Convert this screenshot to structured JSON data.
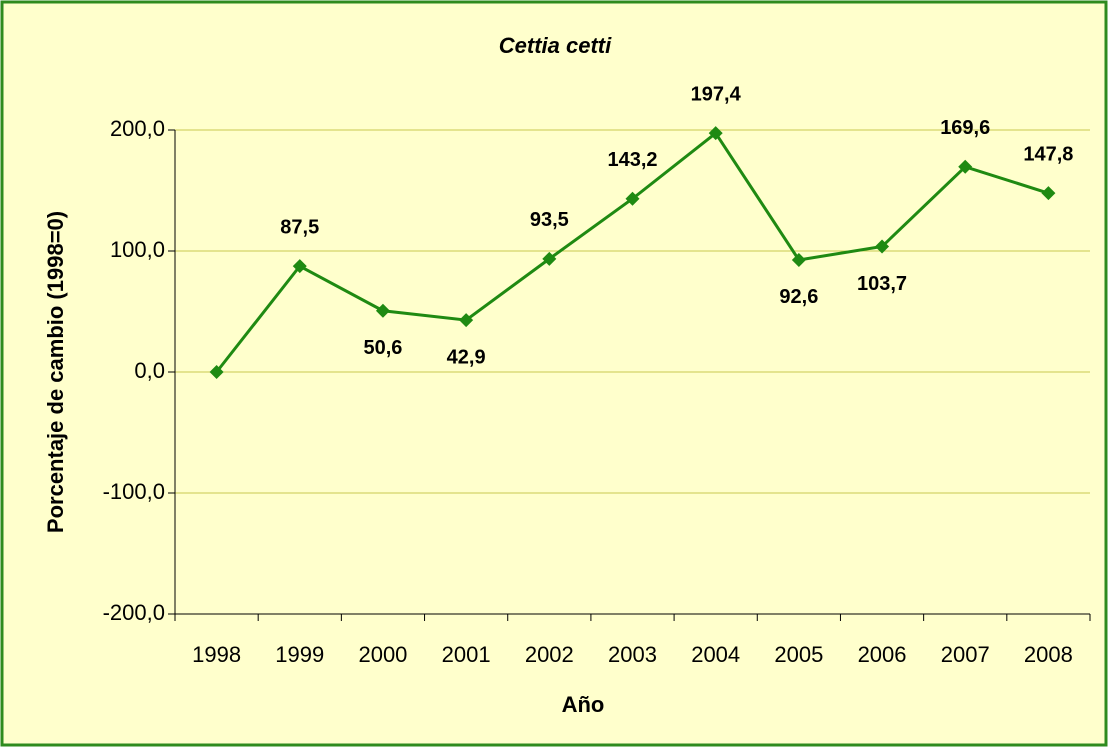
{
  "chart_data": {
    "type": "line",
    "title": "Cettia cetti",
    "x_label": "Año",
    "y_label": "Porcentaje de cambio (1998=0)",
    "categories": [
      "1998",
      "1999",
      "2000",
      "2001",
      "2002",
      "2003",
      "2004",
      "2005",
      "2006",
      "2007",
      "2008"
    ],
    "series": [
      {
        "name": "Cettia cetti",
        "color": "#1f8a12",
        "values": [
          0,
          87.5,
          50.6,
          42.9,
          93.5,
          143.2,
          197.4,
          92.6,
          103.7,
          169.6,
          147.8
        ],
        "value_labels": [
          null,
          "87,5",
          "50,6",
          "42,9",
          "93,5",
          "143,2",
          "197,4",
          "92,6",
          "103,7",
          "169,6",
          "147,8"
        ]
      }
    ],
    "ylim": [
      -200,
      200
    ],
    "yticks": [
      {
        "value": -200,
        "label": "-200,0"
      },
      {
        "value": -100,
        "label": "-100,0"
      },
      {
        "value": 0,
        "label": "0,0"
      },
      {
        "value": 100,
        "label": "100,0"
      },
      {
        "value": 200,
        "label": "200,0"
      }
    ],
    "grid": true,
    "grid_color": "#c8c850",
    "background": "#ffffcc"
  }
}
